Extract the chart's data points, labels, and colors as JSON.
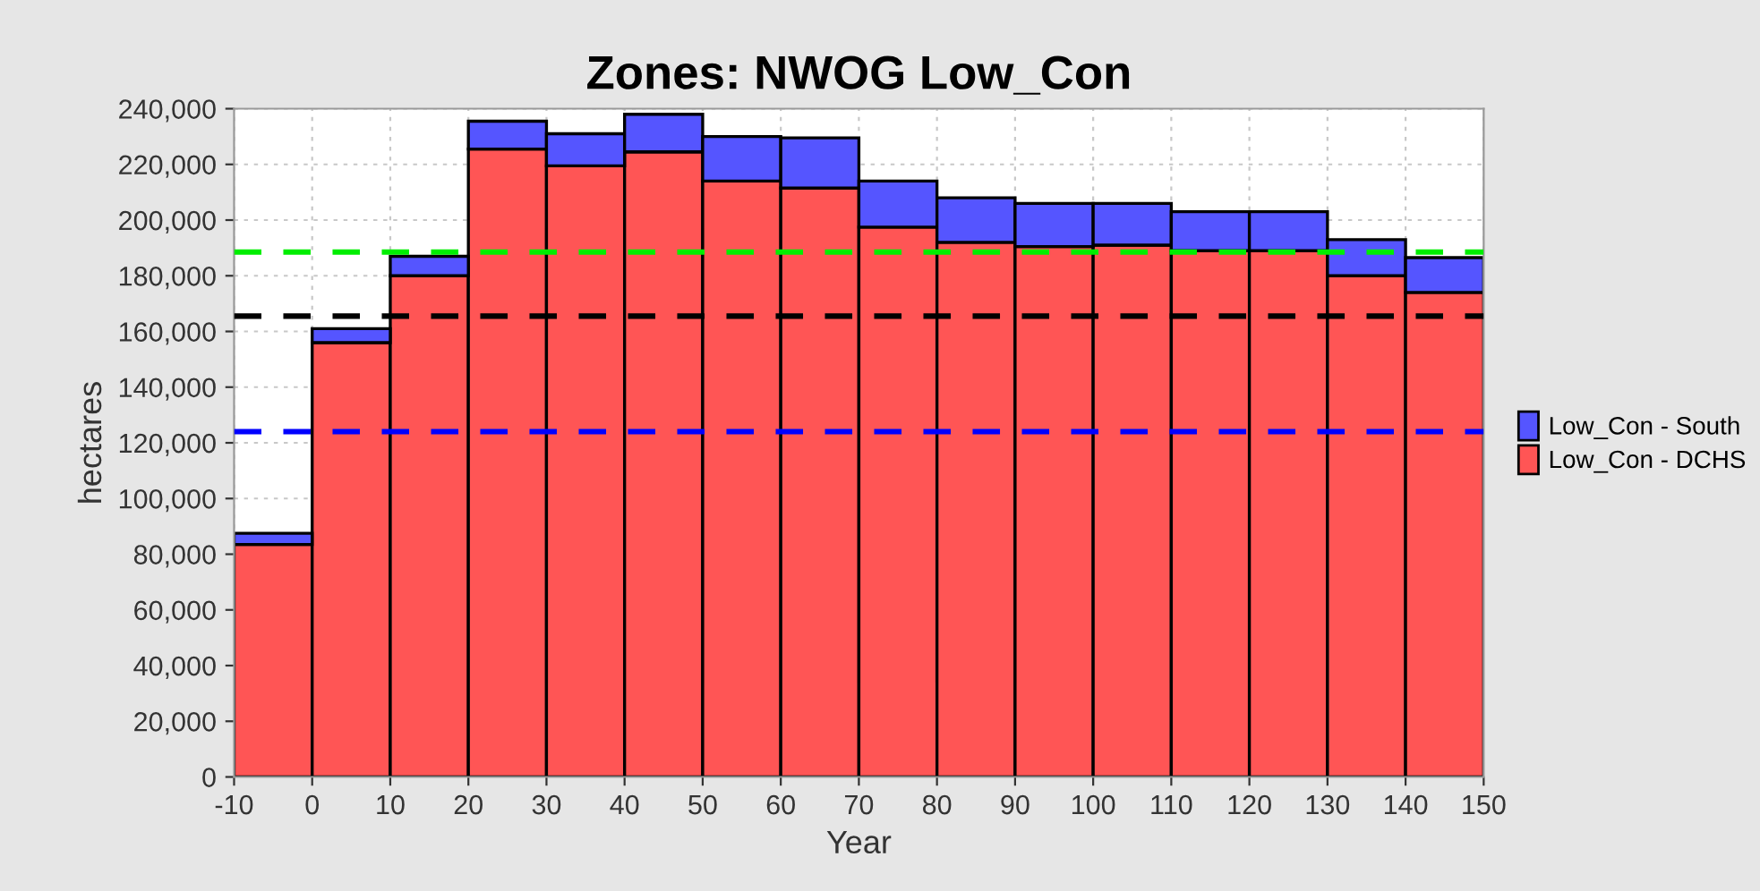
{
  "chart_data": {
    "type": "bar",
    "title": "Zones: NWOG Low_Con",
    "xlabel": "Year",
    "ylabel": "hectares",
    "stacked": true,
    "x": [
      -5,
      5,
      15,
      25,
      35,
      45,
      55,
      65,
      75,
      85,
      95,
      105,
      115,
      125,
      135,
      145
    ],
    "series": [
      {
        "name": "Low_Con - DCHS",
        "color": "#ff5555",
        "values": [
          83500,
          156000,
          180000,
          225500,
          219500,
          224500,
          214000,
          211500,
          197500,
          192000,
          190500,
          191000,
          189000,
          189000,
          180000,
          174000
        ]
      },
      {
        "name": "Low_Con - South",
        "color": "#5555ff",
        "values": [
          4000,
          5000,
          7000,
          10000,
          11500,
          13500,
          16000,
          18000,
          16500,
          16000,
          15500,
          15000,
          14000,
          14000,
          13000,
          12500
        ]
      }
    ],
    "xlim": [
      -10,
      150
    ],
    "xticks": [
      -10,
      0,
      10,
      20,
      30,
      40,
      50,
      60,
      70,
      80,
      90,
      100,
      110,
      120,
      130,
      140,
      150
    ],
    "ylim": [
      0,
      240000
    ],
    "yticks": [
      {
        "value": 0,
        "label": "0"
      },
      {
        "value": 20000,
        "label": "20,000"
      },
      {
        "value": 40000,
        "label": "40,000"
      },
      {
        "value": 60000,
        "label": "60,000"
      },
      {
        "value": 80000,
        "label": "80,000"
      },
      {
        "value": 100000,
        "label": "100,000"
      },
      {
        "value": 120000,
        "label": "120,000"
      },
      {
        "value": 140000,
        "label": "140,000"
      },
      {
        "value": 160000,
        "label": "160,000"
      },
      {
        "value": 180000,
        "label": "180,000"
      },
      {
        "value": 200000,
        "label": "200,000"
      },
      {
        "value": 220000,
        "label": "220,000"
      },
      {
        "value": 240000,
        "label": "240,000"
      }
    ],
    "ref_lines": [
      {
        "axis": "y",
        "value": 188500,
        "color": "#00ee00",
        "line_style": "dashed"
      },
      {
        "axis": "y",
        "value": 165500,
        "color": "#000000",
        "line_style": "dashed"
      },
      {
        "axis": "y",
        "value": 124000,
        "color": "#0000ff",
        "line_style": "dashed"
      }
    ],
    "grid": true,
    "legend": "right"
  }
}
